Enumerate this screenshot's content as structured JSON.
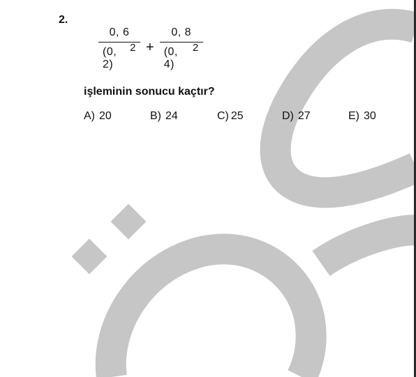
{
  "question": {
    "number": "2.",
    "expression": {
      "fraction_1": {
        "numerator": "0, 6",
        "denominator_base": "(0, 2)",
        "denominator_exponent": "2"
      },
      "operator": "+",
      "fraction_2": {
        "numerator": "0, 8",
        "denominator_base": "(0, 4)",
        "denominator_exponent": "2"
      }
    },
    "prompt": "işleminin sonucu kaçtır?",
    "options": [
      {
        "letter": "A)",
        "value": "20"
      },
      {
        "letter": "B)",
        "value": "24"
      },
      {
        "letter": "C)",
        "value": "25"
      },
      {
        "letter": "D)",
        "value": "27"
      },
      {
        "letter": "E)",
        "value": "30"
      }
    ]
  },
  "watermark": {
    "text": "ÖSYM",
    "color": "#c6c6c6"
  }
}
